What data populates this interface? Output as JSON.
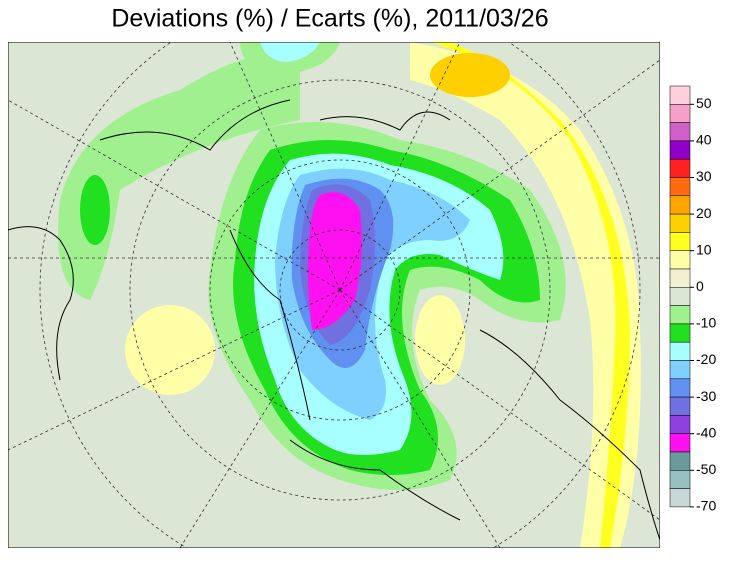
{
  "title": "Deviations (%) / Ecarts (%), 2011/03/26",
  "legend": {
    "colors": [
      "#ffd0dc",
      "#f4a0c8",
      "#d060c8",
      "#9000c8",
      "#ff2020",
      "#ff6a10",
      "#ffa500",
      "#ffd000",
      "#ffff20",
      "#ffffa8",
      "#f2f0d0",
      "#dce6d4",
      "#a0f090",
      "#20e020",
      "#a8ffff",
      "#80d0ff",
      "#6090f0",
      "#7070e0",
      "#9040e0",
      "#ff10f0",
      "#6a9a9a",
      "#98c0c0",
      "#c8d8d8"
    ],
    "ticks": [
      50,
      40,
      30,
      20,
      10,
      0,
      -10,
      -20,
      -30,
      -40,
      -50,
      -70
    ]
  }
}
